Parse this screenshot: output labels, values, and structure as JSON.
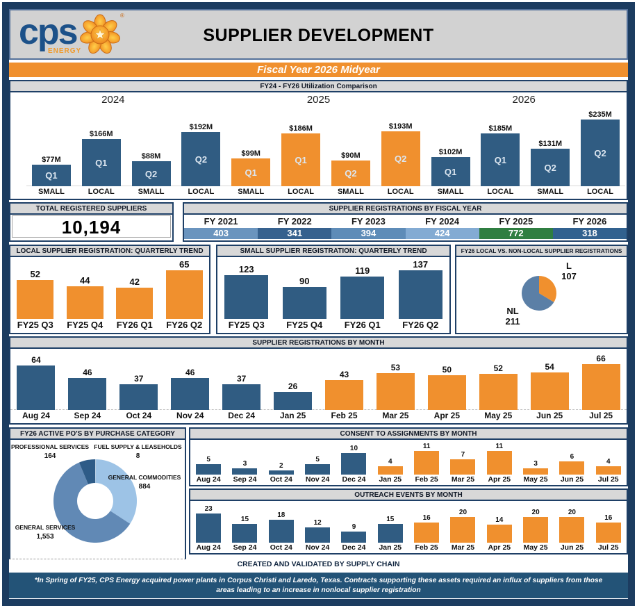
{
  "header": {
    "brand": {
      "text": "cps",
      "sub": "ENERGY",
      "trademark": "®"
    },
    "title": "SUPPLIER DEVELOPMENT",
    "banner": "Fiscal Year 2026 Midyear"
  },
  "colors": {
    "blue": "#305C82",
    "orange": "#F0902E",
    "nl_blue": "#5B7FA6",
    "band": [
      "#6A94BE",
      "#36618E",
      "#5E8CB8",
      "#83ABD3",
      "#2F7E41",
      "#31618F"
    ],
    "donut": {
      "fuel": "#B8CCE0",
      "commodities": "#9DC3E6",
      "services": "#6189B5",
      "professional": "#2E5B87"
    }
  },
  "totals": {
    "registered_suppliers_title": "TOTAL REGISTERED SUPPLIERS",
    "registered_suppliers": "10,194"
  },
  "created_by": "CREATED AND VALIDATED BY SUPPLY CHAIN",
  "footnote": "*In Spring of FY25, CPS Energy acquired power plants in Corpus Christi and Laredo, Texas. Contracts supporting these assets required an influx of suppliers from those areas leading to an increase in nonlocal supplier registration",
  "chart_data": [
    {
      "id": "utilization",
      "type": "bar",
      "title": "FY24 - FY26 Utilization Comparison",
      "groups": [
        "2024",
        "2025",
        "2026"
      ],
      "categories": [
        "SMALL",
        "LOCAL",
        "SMALL",
        "LOCAL",
        "SMALL",
        "LOCAL",
        "SMALL",
        "LOCAL",
        "SMALL",
        "LOCAL",
        "SMALL",
        "LOCAL"
      ],
      "inner": [
        "Q1",
        "Q1",
        "Q2",
        "Q2",
        "Q1",
        "Q1",
        "Q2",
        "Q2",
        "Q1",
        "Q1",
        "Q2",
        "Q2"
      ],
      "values": [
        77,
        166,
        88,
        192,
        99,
        186,
        90,
        193,
        102,
        185,
        131,
        235
      ],
      "labels": [
        "$77M",
        "$166M",
        "$88M",
        "$192M",
        "$99M",
        "$186M",
        "$90M",
        "$193M",
        "$102M",
        "$185M",
        "$131M",
        "$235M"
      ],
      "colors": [
        "blue",
        "blue",
        "blue",
        "blue",
        "orange",
        "orange",
        "orange",
        "orange",
        "blue",
        "blue",
        "blue",
        "blue"
      ],
      "unit": "USD millions"
    },
    {
      "id": "fy-registrations",
      "type": "band",
      "title": "SUPPLIER REGISTRATIONS BY FISCAL YEAR",
      "categories": [
        "FY 2021",
        "FY 2022",
        "FY 2023",
        "FY 2024",
        "FY 2025",
        "FY 2026"
      ],
      "values": [
        403,
        341,
        394,
        424,
        772,
        318
      ]
    },
    {
      "id": "local-quarterly",
      "type": "bar",
      "title": "LOCAL SUPPLIER REGISTRATION: QUARTERLY TREND",
      "categories": [
        "FY25 Q3",
        "FY25 Q4",
        "FY26 Q1",
        "FY26 Q2"
      ],
      "values": [
        52,
        44,
        42,
        65
      ],
      "colors": [
        "orange",
        "orange",
        "orange",
        "orange"
      ]
    },
    {
      "id": "small-quarterly",
      "type": "bar",
      "title": "SMALL SUPPLIER REGISTRATION: QUARTERLY TREND",
      "categories": [
        "FY25 Q3",
        "FY25 Q4",
        "FY26 Q1",
        "FY26 Q2"
      ],
      "values": [
        123,
        90,
        119,
        137
      ],
      "colors": [
        "blue",
        "blue",
        "blue",
        "blue"
      ]
    },
    {
      "id": "local-vs-nonlocal",
      "type": "pie",
      "title": "FY26 LOCAL VS. NON-LOCAL SUPPLIER REGISTRATIONS",
      "slices": [
        {
          "label": "L",
          "value": 107,
          "color": "orange"
        },
        {
          "label": "NL",
          "value": 211,
          "color": "nl_blue"
        }
      ]
    },
    {
      "id": "monthly-registrations",
      "type": "bar",
      "title": "SUPPLIER REGISTRATIONS BY MONTH",
      "categories": [
        "Aug 24",
        "Sep 24",
        "Oct 24",
        "Nov 24",
        "Dec 24",
        "Jan 25",
        "Feb 25",
        "Mar 25",
        "Apr 25",
        "May 25",
        "Jun 25",
        "Jul 25"
      ],
      "values": [
        64,
        46,
        37,
        46,
        37,
        26,
        43,
        53,
        50,
        52,
        54,
        66
      ],
      "colors": [
        "blue",
        "blue",
        "blue",
        "blue",
        "blue",
        "blue",
        "orange",
        "orange",
        "orange",
        "orange",
        "orange",
        "orange"
      ]
    },
    {
      "id": "active-pos",
      "type": "donut",
      "title": "FY26 ACTIVE PO'S BY PURCHASE CATEGORY",
      "slices": [
        {
          "label": "FUEL SUPPLY & LEASEHOLDS",
          "value": 8,
          "display": "8",
          "color": "fuel"
        },
        {
          "label": "GENERAL COMMODITIES",
          "value": 884,
          "display": "884",
          "color": "commodities"
        },
        {
          "label": "GENERAL SERVICES",
          "value": 1553,
          "display": "1,553",
          "color": "services"
        },
        {
          "label": "PROFESSIONAL SERVICES",
          "value": 164,
          "display": "164",
          "color": "professional"
        }
      ]
    },
    {
      "id": "consent-assignments",
      "type": "bar",
      "title": "CONSENT TO ASSIGNMENTS BY MONTH",
      "categories": [
        "Aug 24",
        "Sep 24",
        "Oct 24",
        "Nov 24",
        "Dec 24",
        "Jan 25",
        "Feb 25",
        "Mar 25",
        "Apr 25",
        "May 25",
        "Jun 25",
        "Jul 25"
      ],
      "values": [
        5,
        3,
        2,
        5,
        10,
        4,
        11,
        7,
        11,
        3,
        6,
        4
      ],
      "colors": [
        "blue",
        "blue",
        "blue",
        "blue",
        "blue",
        "orange",
        "orange",
        "orange",
        "orange",
        "orange",
        "orange",
        "orange"
      ]
    },
    {
      "id": "outreach-events",
      "type": "bar",
      "title": "OUTREACH EVENTS BY MONTH",
      "categories": [
        "Aug 24",
        "Sep 24",
        "Oct 24",
        "Nov 24",
        "Dec 24",
        "Jan 25",
        "Feb 25",
        "Mar 25",
        "Apr 25",
        "May 25",
        "Jun 25",
        "Jul 25"
      ],
      "values": [
        23,
        15,
        18,
        12,
        9,
        15,
        16,
        20,
        14,
        20,
        20,
        16
      ],
      "colors": [
        "blue",
        "blue",
        "blue",
        "blue",
        "blue",
        "blue",
        "orange",
        "orange",
        "orange",
        "orange",
        "orange",
        "orange"
      ]
    }
  ]
}
